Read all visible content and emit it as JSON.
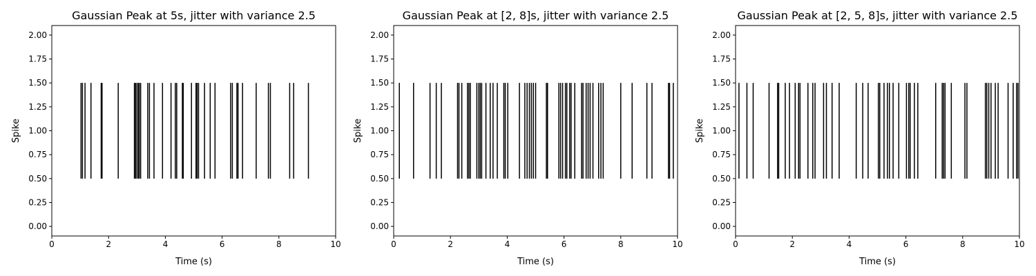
{
  "chart_data": [
    {
      "type": "eventplot",
      "title": "Gaussian Peak at 5s, jitter with variance 2.5",
      "xlabel": "Time (s)",
      "ylabel": "Spike",
      "xlim": [
        0,
        10
      ],
      "ylim": [
        -0.1,
        2.1
      ],
      "xticks": [
        0,
        2,
        4,
        6,
        8,
        10
      ],
      "yticks": [
        "0.00",
        "0.25",
        "0.50",
        "0.75",
        "1.00",
        "1.25",
        "1.50",
        "1.75",
        "2.00"
      ],
      "line_extent": [
        0.5,
        1.5
      ],
      "color": "#000000",
      "spike_times": [
        1.03,
        1.08,
        1.17,
        1.38,
        1.74,
        1.77,
        2.34,
        2.91,
        2.95,
        3.0,
        3.05,
        3.08,
        3.13,
        3.38,
        3.44,
        3.6,
        3.9,
        4.2,
        4.35,
        4.4,
        4.6,
        4.63,
        4.92,
        5.08,
        5.12,
        5.17,
        5.38,
        5.58,
        5.75,
        6.3,
        6.36,
        6.52,
        6.56,
        6.72,
        7.2,
        7.63,
        7.7,
        8.38,
        8.52,
        9.04
      ]
    },
    {
      "type": "eventplot",
      "title": "Gaussian Peak at [2, 8]s, jitter with variance 2.5",
      "xlabel": "Time (s)",
      "ylabel": "Spike",
      "xlim": [
        0,
        10
      ],
      "ylim": [
        -0.1,
        2.1
      ],
      "xticks": [
        0,
        2,
        4,
        6,
        8,
        10
      ],
      "yticks": [
        "0.00",
        "0.25",
        "0.50",
        "0.75",
        "1.00",
        "1.25",
        "1.50",
        "1.75",
        "2.00"
      ],
      "line_extent": [
        0.5,
        1.5
      ],
      "color": "#000000",
      "spike_times": [
        0.2,
        0.7,
        1.28,
        1.5,
        1.68,
        2.25,
        2.3,
        2.4,
        2.6,
        2.65,
        2.7,
        2.93,
        3.0,
        3.05,
        3.1,
        3.25,
        3.4,
        3.5,
        3.65,
        3.88,
        3.93,
        4.02,
        4.43,
        4.62,
        4.7,
        4.78,
        4.85,
        4.92,
        5.0,
        5.38,
        5.42,
        5.82,
        5.88,
        5.95,
        6.05,
        6.1,
        6.2,
        6.25,
        6.38,
        6.62,
        6.67,
        6.78,
        6.85,
        6.92,
        7.02,
        7.22,
        7.3,
        7.38,
        8.0,
        8.4,
        8.92,
        9.1,
        9.68,
        9.72,
        9.85
      ]
    },
    {
      "type": "eventplot",
      "title": "Gaussian Peak at [2, 5, 8]s, jitter with variance 2.5",
      "xlabel": "Time (s)",
      "ylabel": "Spike",
      "xlim": [
        0,
        10
      ],
      "ylim": [
        -0.1,
        2.1
      ],
      "xticks": [
        0,
        2,
        4,
        6,
        8,
        10
      ],
      "yticks": [
        "0.00",
        "0.25",
        "0.50",
        "0.75",
        "1.00",
        "1.25",
        "1.50",
        "1.75",
        "2.00"
      ],
      "line_extent": [
        0.5,
        1.5
      ],
      "color": "#000000",
      "spike_times": [
        0.12,
        0.4,
        0.62,
        1.18,
        1.48,
        1.52,
        1.75,
        1.9,
        2.1,
        2.22,
        2.27,
        2.55,
        2.72,
        2.8,
        3.1,
        3.2,
        3.4,
        3.65,
        4.25,
        4.48,
        4.67,
        5.03,
        5.08,
        5.23,
        5.35,
        5.42,
        5.55,
        5.75,
        6.02,
        6.1,
        6.15,
        6.3,
        6.42,
        7.05,
        7.28,
        7.33,
        7.38,
        7.6,
        8.08,
        8.15,
        8.8,
        8.85,
        8.92,
        9.0,
        9.15,
        9.25,
        9.6,
        9.78,
        9.9,
        9.95
      ]
    }
  ]
}
